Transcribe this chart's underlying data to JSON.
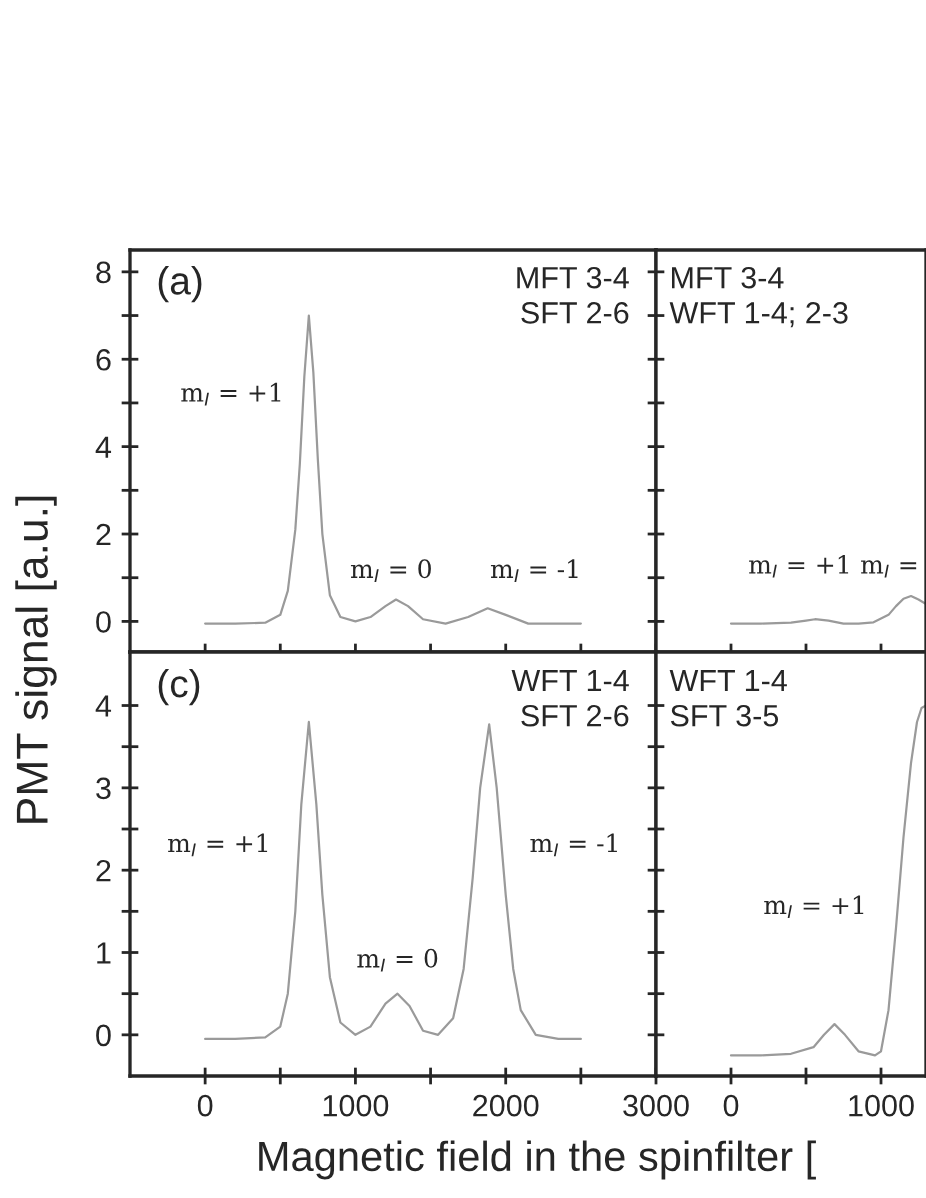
{
  "chart_data": [
    {
      "type": "line",
      "ylabel": "PMT signal [a.u.]",
      "xlim": [
        -500,
        3000
      ],
      "ylim": [
        -0.7,
        8.5
      ],
      "tick_labels": "y",
      "grid": false,
      "marker": "none",
      "line_style": "solid",
      "xticks": [
        0,
        {
          "value": 500,
          "label": null
        },
        1000,
        {
          "value": 1500,
          "label": null
        },
        2000,
        {
          "value": 2500,
          "label": null
        },
        3000
      ],
      "yticks": [
        0,
        {
          "value": 1,
          "label": null
        },
        2,
        {
          "value": 3,
          "label": null
        },
        4,
        {
          "value": 5,
          "label": null
        },
        6,
        {
          "value": 7,
          "label": null
        },
        8
      ],
      "series": [
        {
          "color": "#9a9a9a",
          "x": [
            0,
            200,
            400,
            500,
            550,
            600,
            630,
            660,
            690,
            720,
            750,
            780,
            830,
            900,
            1000,
            1100,
            1200,
            1270,
            1350,
            1450,
            1600,
            1750,
            1880,
            2000,
            2150,
            2300,
            2500
          ],
          "values": [
            -0.05,
            -0.05,
            -0.03,
            0.15,
            0.7,
            2.1,
            3.6,
            5.6,
            7.0,
            5.7,
            3.7,
            2.0,
            0.6,
            0.1,
            0.0,
            0.1,
            0.35,
            0.5,
            0.35,
            0.05,
            -0.05,
            0.1,
            0.3,
            0.15,
            -0.05,
            -0.05,
            -0.05
          ]
        }
      ],
      "annotations": [
        "(a)",
        "MFT 3-4\nSFT 2-6",
        "m$_{I}$ = +1",
        "m$_{I}$ = 0",
        "m$_{I}$ = -1"
      ]
    },
    {
      "type": "line",
      "xlim": [
        -500,
        1300
      ],
      "ylim": [
        -0.7,
        8.5
      ],
      "tick_labels": false,
      "grid": false,
      "marker": "none",
      "line_style": "solid",
      "xticks": [
        0,
        {
          "value": 500,
          "label": null
        },
        1000
      ],
      "yticks": [
        {
          "value": 0,
          "label": null
        },
        {
          "value": 1,
          "label": null
        },
        {
          "value": 2,
          "label": null
        },
        {
          "value": 3,
          "label": null
        },
        {
          "value": 4,
          "label": null
        },
        {
          "value": 5,
          "label": null
        },
        {
          "value": 6,
          "label": null
        },
        {
          "value": 7,
          "label": null
        },
        {
          "value": 8,
          "label": null
        }
      ],
      "series": [
        {
          "color": "#9a9a9a",
          "x": [
            0,
            200,
            400,
            500,
            560,
            650,
            750,
            850,
            950,
            1050,
            1100,
            1150,
            1200,
            1250,
            1300
          ],
          "values": [
            -0.05,
            -0.05,
            -0.03,
            0.02,
            0.05,
            0.02,
            -0.05,
            -0.05,
            -0.02,
            0.15,
            0.35,
            0.52,
            0.58,
            0.5,
            0.4
          ]
        }
      ],
      "annotations": [
        "MFT 3-4\nWFT 1-4; 2-3",
        "m$_{I}$ = +1",
        "m$_{I}$ ="
      ]
    },
    {
      "type": "line",
      "xlabel": "Magnetic field in the spinfilter [",
      "xlim": [
        -500,
        3000
      ],
      "ylim": [
        -0.5,
        4.65
      ],
      "grid": false,
      "marker": "none",
      "line_style": "solid",
      "xticks": [
        0,
        {
          "value": 500,
          "label": null
        },
        1000,
        {
          "value": 1500,
          "label": null
        },
        2000,
        {
          "value": 2500,
          "label": null
        },
        3000
      ],
      "yticks": [
        0,
        {
          "value": 0.5,
          "label": null
        },
        1,
        {
          "value": 1.5,
          "label": null
        },
        2,
        {
          "value": 2.5,
          "label": null
        },
        3,
        {
          "value": 3.5,
          "label": null
        },
        4
      ],
      "series": [
        {
          "color": "#9a9a9a",
          "x": [
            0,
            200,
            400,
            500,
            550,
            600,
            640,
            690,
            740,
            780,
            830,
            900,
            1000,
            1100,
            1200,
            1280,
            1360,
            1450,
            1550,
            1650,
            1720,
            1780,
            1830,
            1890,
            1940,
            2000,
            2050,
            2100,
            2200,
            2350,
            2500
          ],
          "values": [
            -0.05,
            -0.05,
            -0.03,
            0.1,
            0.5,
            1.5,
            2.8,
            3.8,
            2.8,
            1.7,
            0.7,
            0.15,
            0.0,
            0.1,
            0.38,
            0.5,
            0.35,
            0.05,
            0.0,
            0.2,
            0.8,
            1.9,
            3.0,
            3.77,
            3.0,
            1.7,
            0.8,
            0.3,
            0.0,
            -0.05,
            -0.05
          ]
        }
      ],
      "annotations": [
        "(c)",
        "WFT 1-4\nSFT 2-6",
        "m$_{I}$ = +1",
        "m$_{I}$ = 0",
        "m$_{I}$ = -1"
      ]
    },
    {
      "type": "line",
      "xlim": [
        -500,
        1300
      ],
      "ylim": [
        -0.5,
        4.65
      ],
      "tick_labels": "x",
      "grid": false,
      "marker": "none",
      "line_style": "solid",
      "xticks": [
        0,
        {
          "value": 500,
          "label": null
        },
        1000
      ],
      "yticks": [
        {
          "value": 0,
          "label": null
        },
        {
          "value": 0.5,
          "label": null
        },
        {
          "value": 1,
          "label": null
        },
        {
          "value": 1.5,
          "label": null
        },
        {
          "value": 2,
          "label": null
        },
        {
          "value": 2.5,
          "label": null
        },
        {
          "value": 3,
          "label": null
        },
        {
          "value": 3.5,
          "label": null
        },
        {
          "value": 4,
          "label": null
        }
      ],
      "series": [
        {
          "color": "#9a9a9a",
          "x": [
            0,
            200,
            400,
            550,
            620,
            690,
            760,
            850,
            960,
            1000,
            1050,
            1100,
            1150,
            1200,
            1240,
            1270,
            1300
          ],
          "values": [
            -0.25,
            -0.25,
            -0.23,
            -0.15,
            0.0,
            0.13,
            0.0,
            -0.2,
            -0.25,
            -0.2,
            0.3,
            1.3,
            2.4,
            3.3,
            3.8,
            3.97,
            4.0
          ]
        }
      ],
      "annotations": [
        "WFT 1-4\nSFT 3-5",
        "m$_{I}$ = +1"
      ]
    }
  ]
}
